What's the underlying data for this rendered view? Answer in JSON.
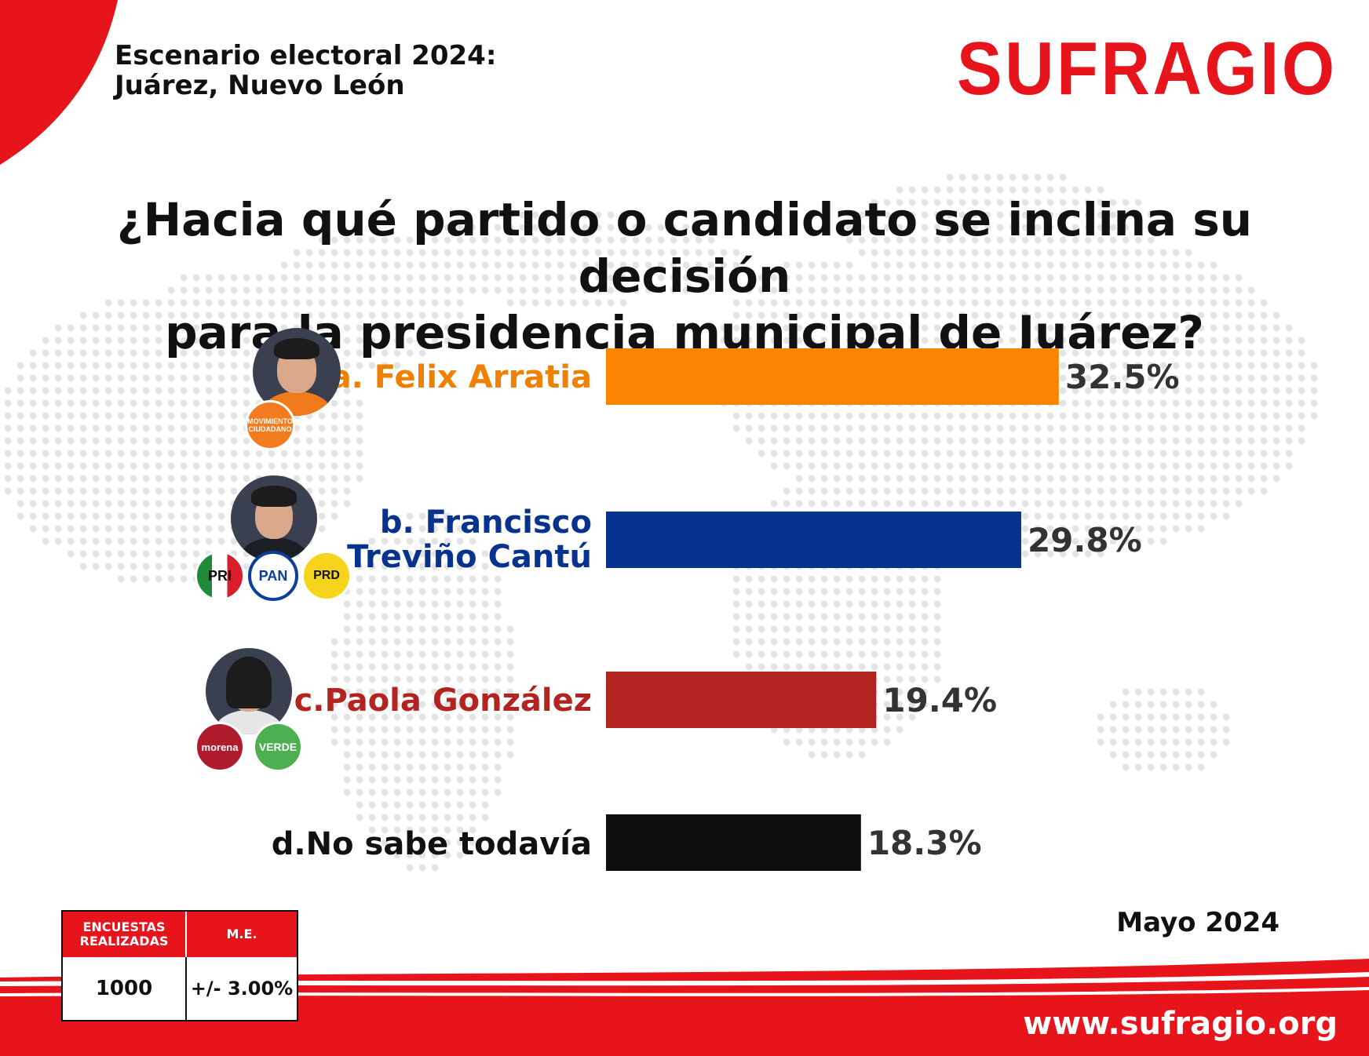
{
  "header": {
    "line1": "Escenario electoral 2024:",
    "line2": "Juárez, Nuevo León"
  },
  "brand": {
    "logo_text": "SUFRAGIO",
    "color": "#e8141c"
  },
  "question": {
    "line1": "¿Hacia qué partido o candidato se inclina su decisión",
    "line2": "para la presidencia municipal de Juárez?"
  },
  "chart_data": {
    "type": "bar",
    "orientation": "horizontal",
    "title": "¿Hacia qué partido o candidato se inclina su decisión para la presidencia municipal de Juárez?",
    "categories": [
      "a. Felix Arratia",
      "b. Francisco Treviño Cantú",
      "c.Paola González",
      "d.No sabe todavía"
    ],
    "label_lines": [
      [
        "a. Felix Arratia"
      ],
      [
        "b. Francisco",
        "Treviño Cantú"
      ],
      [
        "c.Paola González"
      ],
      [
        "d.No sabe todavía"
      ]
    ],
    "values": [
      32.5,
      29.8,
      19.4,
      18.3
    ],
    "value_labels": [
      "32.5%",
      "29.8%",
      "19.4%",
      "18.3%"
    ],
    "colors": [
      "#fb8500",
      "#07338f",
      "#b32420",
      "#0f0f0f"
    ],
    "label_colors": [
      "#f08000",
      "#07338f",
      "#b32420",
      "#111111"
    ],
    "unit": "%",
    "grid": false,
    "legend": "none"
  },
  "parties": {
    "felix": [
      "MOVIMIENTO CIUDADANO"
    ],
    "francisco": [
      "PRI",
      "PAN",
      "PRD"
    ],
    "paola": [
      "morena",
      "VERDE"
    ]
  },
  "survey_table": {
    "headers": [
      "ENCUESTAS REALIZADAS",
      "M.E."
    ],
    "values": [
      "1000",
      "+/- 3.00%"
    ]
  },
  "date": "Mayo 2024",
  "footer": {
    "url": "www.sufragio.org"
  }
}
